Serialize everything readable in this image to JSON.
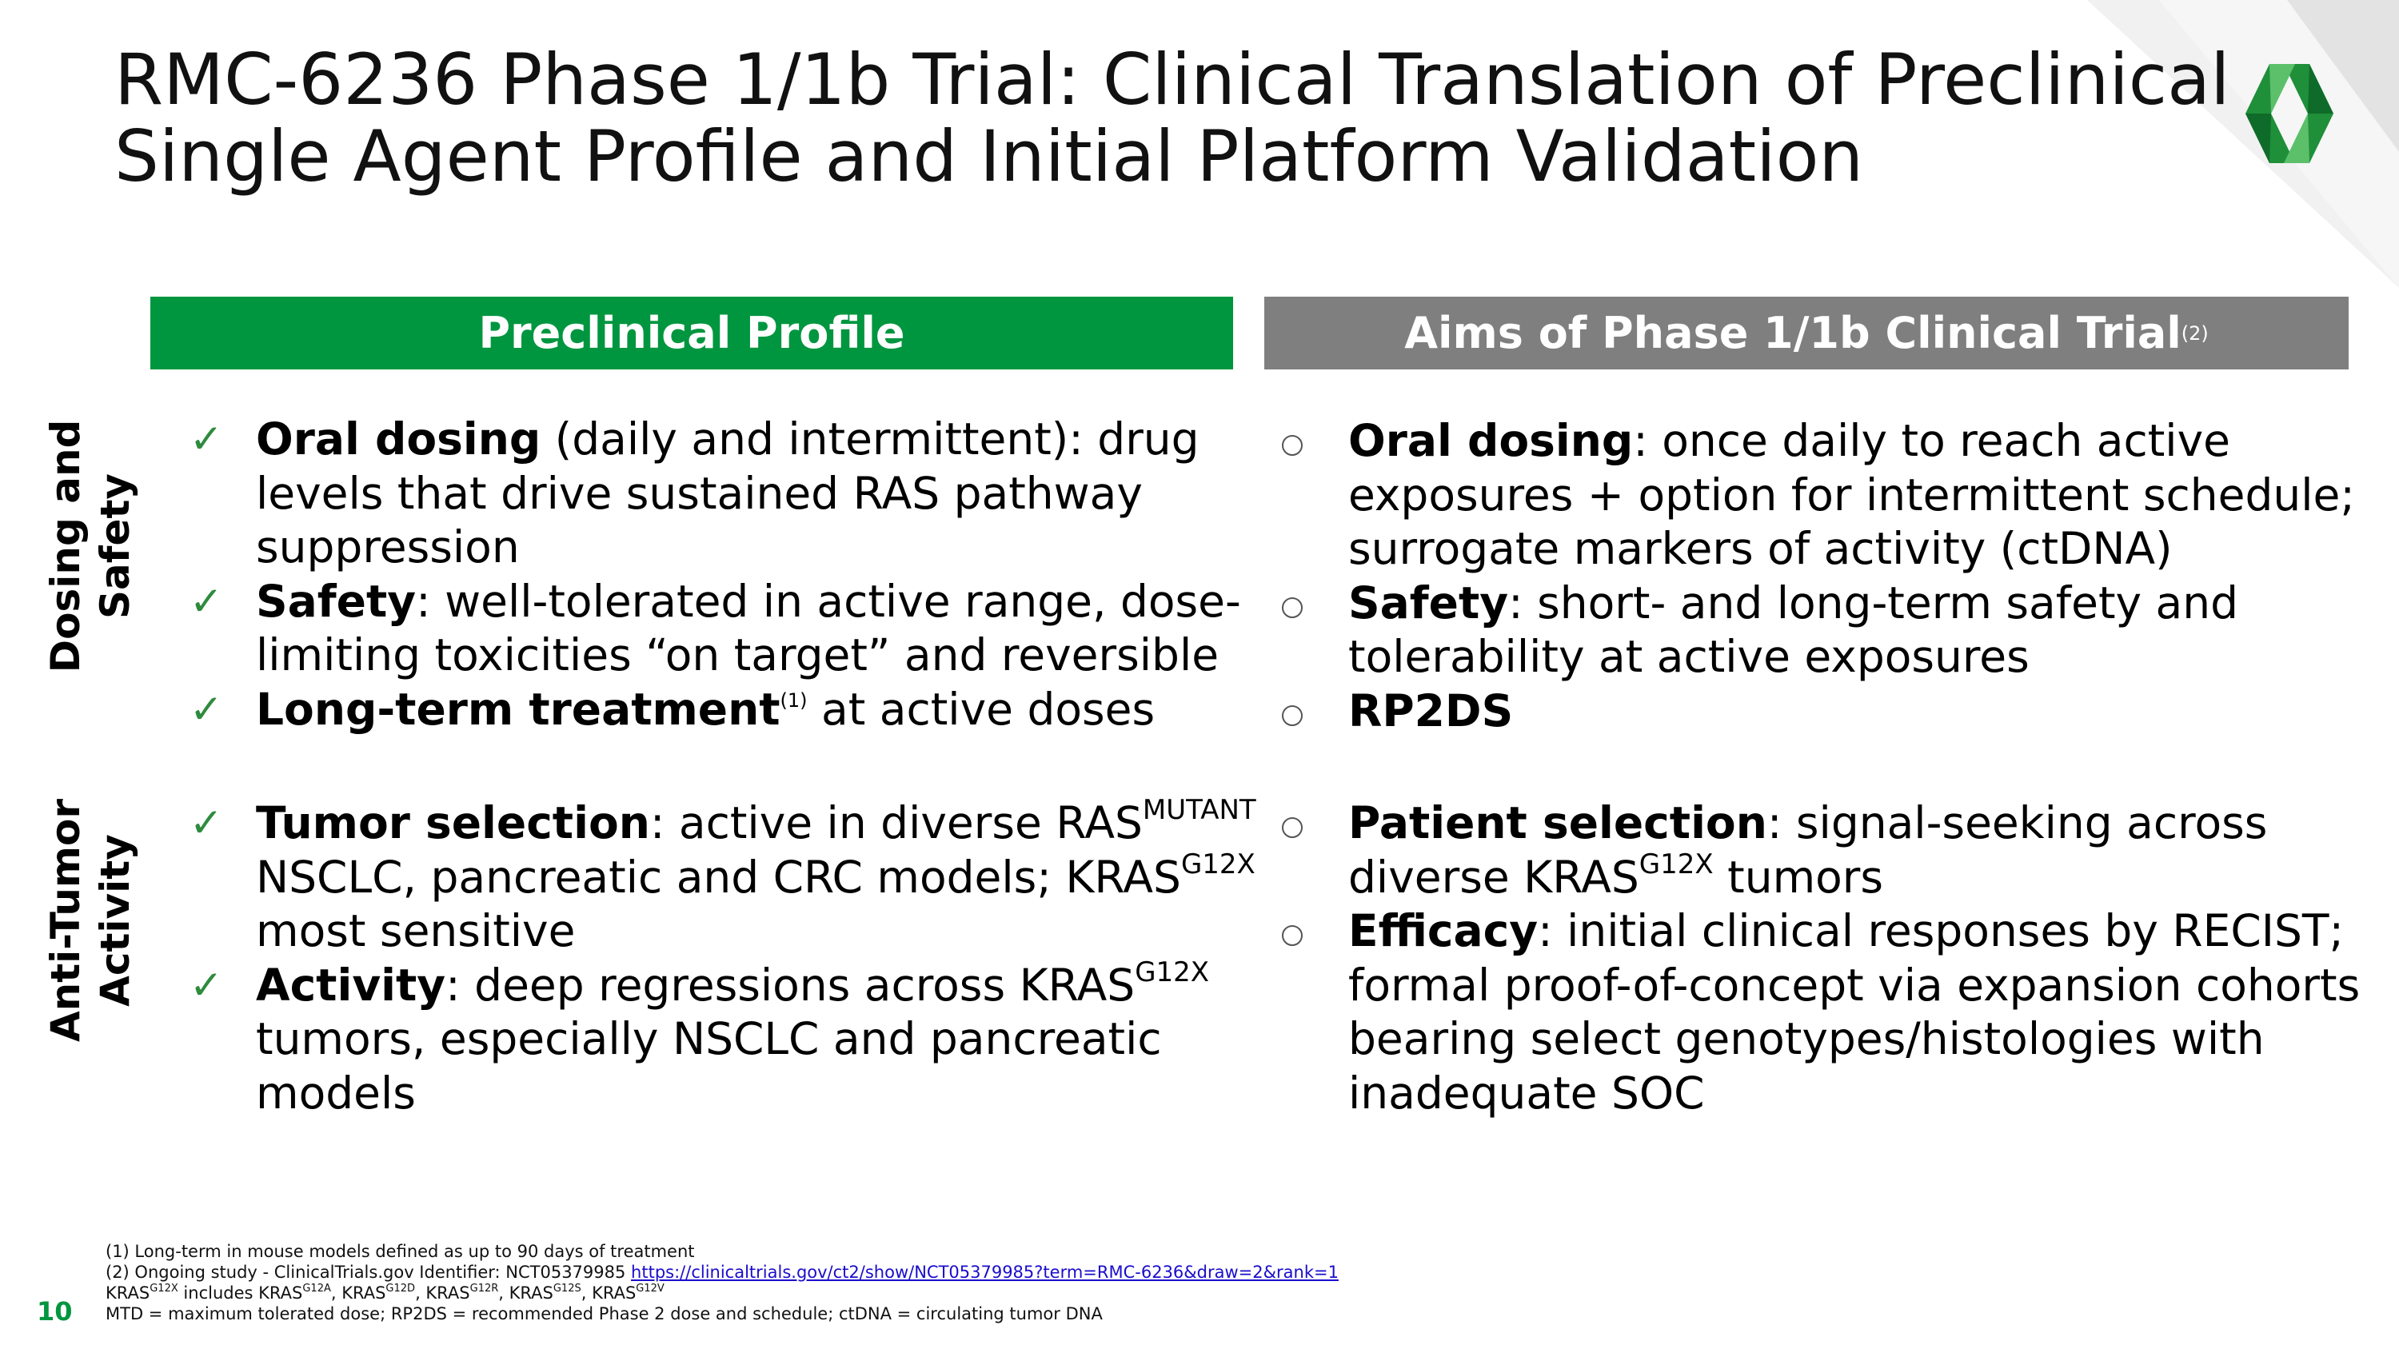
{
  "colors": {
    "green": "#00963F",
    "gray": "#7F7F7F",
    "check": "#2E8B3E"
  },
  "slide": {
    "title_line1": "RMC-6236 Phase 1/1b Trial: Clinical Translation of Preclinical",
    "title_line2": "Single Agent Profile and Initial Platform Validation",
    "page_number": "10"
  },
  "logo": {
    "icon": "revolution-medicines-logo-icon"
  },
  "columns": {
    "left_header": "Preclinical Profile",
    "right_header": "Aims of Phase 1/1b Clinical Trial",
    "right_header_sup": "(2)"
  },
  "rows": {
    "row1_label_line1": "Dosing and",
    "row1_label_line2": "Safety",
    "row2_label_line1": "Anti-Tumor",
    "row2_label_line2": "Activity"
  },
  "preclinical": {
    "dosing_bold": "Oral dosing",
    "dosing_line1_rest": " (daily and intermittent): drug",
    "dosing_line2": "levels that drive sustained RAS pathway",
    "dosing_line3": "suppression",
    "safety_bold": "Safety",
    "safety_line1_rest": ": well-tolerated in active range, dose-",
    "safety_line2": "limiting toxicities “on target” and reversible",
    "longterm_bold": "Long-term treatment",
    "longterm_sup": "(1)",
    "longterm_rest": " at active doses",
    "tumor_bold": "Tumor selection",
    "tumor_line1_rest": ": active in diverse RAS",
    "tumor_sup1": "MUTANT",
    "tumor_line2": "NSCLC, pancreatic and CRC models; KRAS",
    "tumor_sup2": "G12X",
    "tumor_line3": "most sensitive",
    "activity_bold": "Activity",
    "activity_line1_rest": ": deep regressions across KRAS",
    "activity_sup": "G12X",
    "activity_line2": "tumors, especially NSCLC and pancreatic",
    "activity_line3": "models"
  },
  "aims": {
    "dosing_bold": "Oral dosing",
    "dosing_line1_rest": ": once daily to reach active",
    "dosing_line2": "exposures + option for intermittent schedule;",
    "dosing_line3": "surrogate markers of activity (ctDNA)",
    "safety_bold": "Safety",
    "safety_line1_rest": ": short- and long-term safety and",
    "safety_line2": "tolerability at active exposures",
    "rp2ds_bold": "RP2DS",
    "patient_bold": "Patient selection",
    "patient_line1_rest": ": signal-seeking across",
    "patient_line2": "diverse KRAS",
    "patient_sup": "G12X",
    "patient_line2_rest": " tumors",
    "efficacy_bold": "Efficacy",
    "efficacy_line1_rest": ": initial clinical responses by RECIST;",
    "efficacy_line2": "formal proof-of-concept via expansion cohorts",
    "efficacy_line3": "bearing select genotypes/histologies with",
    "efficacy_line4": "inadequate SOC"
  },
  "footnotes": {
    "fn1": "(1)  Long-term in mouse models defined as up to 90 days of treatment",
    "fn2_text": "(2)  Ongoing study - ClinicalTrials.gov Identifier: NCT05379985 ",
    "fn2_link": "https://clinicaltrials.gov/ct2/show/NCT05379985?term=RMC-6236&draw=2&rank=1",
    "fn3_a": "KRAS",
    "fn3_sup_a": "G12X",
    "fn3_b": " includes KRAS",
    "fn3_sup_b": "G12A",
    "fn3_c": ", KRAS",
    "fn3_sup_c": "G12D",
    "fn3_d": ", KRAS",
    "fn3_sup_d": "G12R",
    "fn3_e": ", KRAS",
    "fn3_sup_e": "G12S",
    "fn3_f": ", KRAS",
    "fn3_sup_f": "G12V",
    "fn4": "MTD = maximum tolerated dose; RP2DS = recommended Phase 2 dose and schedule; ctDNA = circulating tumor DNA"
  }
}
